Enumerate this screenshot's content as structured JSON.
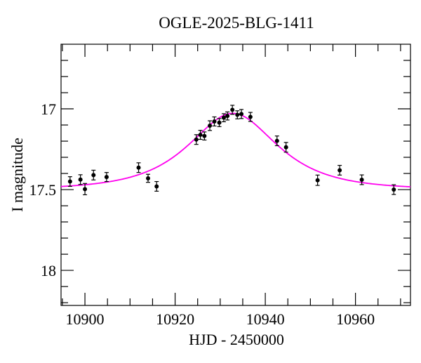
{
  "chart": {
    "title": "OGLE-2025-BLG-1411",
    "xlabel": "HJD - 2450000",
    "ylabel": "I magnitude"
  },
  "chart_data": {
    "type": "scatter",
    "title": "OGLE-2025-BLG-1411",
    "xlabel": "HJD - 2450000",
    "ylabel": "I magnitude",
    "x_range": [
      10894.7,
      10972.2
    ],
    "y_range_mag": [
      16.6,
      18.217
    ],
    "y_axis_inverted": true,
    "grid": false,
    "legend": "none",
    "x_major_ticks": [
      10900,
      10920,
      10940,
      10960
    ],
    "x_major_tick_labels": [
      "10900",
      "10920",
      "10940",
      "10960"
    ],
    "x_minor_tick_step": 5,
    "y_major_ticks": [
      17,
      17.5,
      18
    ],
    "y_major_tick_labels": [
      "17",
      "17.5",
      "18"
    ],
    "y_minor_tick_step": 0.1,
    "points": [
      {
        "hjd": 10896.7,
        "mag": 17.45,
        "err": 0.03
      },
      {
        "hjd": 10899.0,
        "mag": 17.438,
        "err": 0.03
      },
      {
        "hjd": 10900.0,
        "mag": 17.497,
        "err": 0.035
      },
      {
        "hjd": 10901.9,
        "mag": 17.41,
        "err": 0.03
      },
      {
        "hjd": 10904.8,
        "mag": 17.422,
        "err": 0.028
      },
      {
        "hjd": 10911.9,
        "mag": 17.364,
        "err": 0.03
      },
      {
        "hjd": 10914.0,
        "mag": 17.43,
        "err": 0.025
      },
      {
        "hjd": 10915.9,
        "mag": 17.48,
        "err": 0.03
      },
      {
        "hjd": 10924.7,
        "mag": 17.19,
        "err": 0.03
      },
      {
        "hjd": 10925.6,
        "mag": 17.161,
        "err": 0.028
      },
      {
        "hjd": 10926.5,
        "mag": 17.168,
        "err": 0.025
      },
      {
        "hjd": 10927.7,
        "mag": 17.104,
        "err": 0.03
      },
      {
        "hjd": 10928.7,
        "mag": 17.078,
        "err": 0.028
      },
      {
        "hjd": 10929.8,
        "mag": 17.085,
        "err": 0.025
      },
      {
        "hjd": 10930.8,
        "mag": 17.055,
        "err": 0.025
      },
      {
        "hjd": 10931.6,
        "mag": 17.044,
        "err": 0.025
      },
      {
        "hjd": 10932.7,
        "mag": 17.006,
        "err": 0.028
      },
      {
        "hjd": 10933.8,
        "mag": 17.037,
        "err": 0.025
      },
      {
        "hjd": 10934.7,
        "mag": 17.032,
        "err": 0.028
      },
      {
        "hjd": 10936.7,
        "mag": 17.05,
        "err": 0.028
      },
      {
        "hjd": 10942.6,
        "mag": 17.198,
        "err": 0.03
      },
      {
        "hjd": 10944.6,
        "mag": 17.238,
        "err": 0.03
      },
      {
        "hjd": 10951.6,
        "mag": 17.442,
        "err": 0.032
      },
      {
        "hjd": 10956.5,
        "mag": 17.38,
        "err": 0.03
      },
      {
        "hjd": 10961.4,
        "mag": 17.439,
        "err": 0.03
      },
      {
        "hjd": 10968.5,
        "mag": 17.5,
        "err": 0.03
      }
    ],
    "model_curve": {
      "type": "paczynski-microlensing",
      "t0": 10932.8,
      "tE": 13.4,
      "u0": 0.79,
      "baseline_mag": 17.5,
      "peak_mag": 17.03
    },
    "colors": {
      "curve": "#ff00ee",
      "points": "#000000",
      "frame": "#000000",
      "background": "#ffffff"
    }
  }
}
